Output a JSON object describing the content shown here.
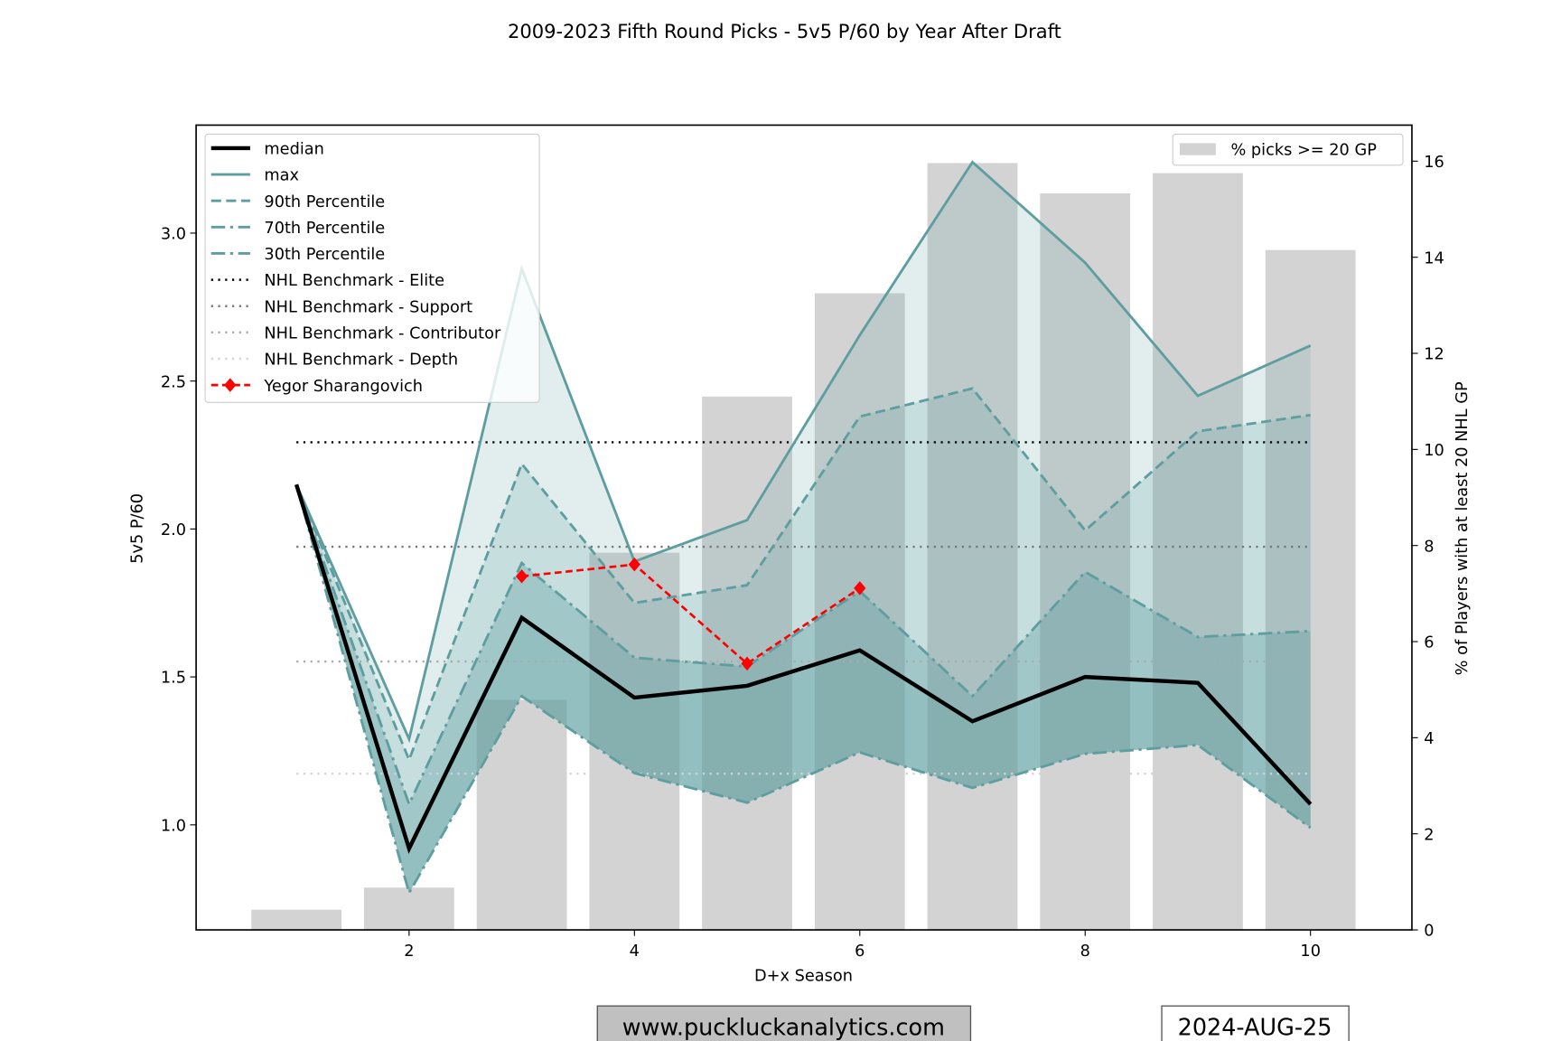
{
  "chart_data": {
    "type": "line",
    "title": "2009-2023 Fifth Round Picks - 5v5 P/60 by Year After Draft",
    "xlabel": "D+x Season",
    "ylabel": "5v5 P/60",
    "y2label": "% of Players with at least 20 NHL GP",
    "xlim": [
      0.11,
      10.9
    ],
    "ylim": [
      0.645,
      3.365
    ],
    "y2lim": [
      0,
      16.75
    ],
    "xticks": [
      2,
      4,
      6,
      8,
      10
    ],
    "yticks": [
      "1.0",
      "1.5",
      "2.0",
      "2.5",
      "3.0"
    ],
    "y2ticks": [
      0,
      2,
      4,
      6,
      8,
      10,
      12,
      14,
      16
    ],
    "x": [
      1,
      2,
      3,
      4,
      5,
      6,
      7,
      8,
      9,
      10
    ],
    "series": [
      {
        "name": "median",
        "values": [
          2.15,
          0.92,
          1.7,
          1.43,
          1.47,
          1.59,
          1.35,
          1.5,
          1.48,
          1.07
        ]
      },
      {
        "name": "max",
        "values": [
          2.15,
          1.29,
          2.88,
          1.89,
          2.03,
          2.655,
          3.24,
          2.9,
          2.45,
          2.62
        ]
      },
      {
        "name": "90th Percentile",
        "values": [
          2.15,
          1.22,
          2.22,
          1.75,
          1.81,
          2.38,
          2.475,
          1.995,
          2.33,
          2.385
        ]
      },
      {
        "name": "70th Percentile",
        "values": [
          2.15,
          1.07,
          1.885,
          1.565,
          1.535,
          1.79,
          1.435,
          1.855,
          1.635,
          1.655
        ]
      },
      {
        "name": "30th Percentile",
        "values": [
          2.15,
          0.77,
          1.435,
          1.175,
          1.075,
          1.245,
          1.125,
          1.24,
          1.27,
          0.99
        ]
      }
    ],
    "benchmarks": [
      {
        "name": "NHL Benchmark - Elite",
        "value": 2.293,
        "color": "#000000"
      },
      {
        "name": "NHL Benchmark - Support",
        "value": 1.94,
        "color": "#777777"
      },
      {
        "name": "NHL Benchmark - Contributor",
        "value": 1.552,
        "color": "#aaaaaa"
      },
      {
        "name": "NHL Benchmark - Depth",
        "value": 1.173,
        "color": "#d3d3d3"
      }
    ],
    "player": {
      "name": "Yegor Sharangovich",
      "x": [
        3,
        4,
        5,
        6
      ],
      "values": [
        1.84,
        1.88,
        1.545,
        1.8
      ],
      "color": "#ff0000"
    },
    "bars": {
      "name": "% picks >= 20 GP",
      "values": [
        0.42,
        0.88,
        4.79,
        7.85,
        11.1,
        13.25,
        15.96,
        15.33,
        15.75,
        14.15
      ],
      "color": "#d3d3d3"
    },
    "colors": {
      "teal": "#5f9ea0",
      "median": "#000000"
    },
    "legend_placement": "upper-left",
    "bar_legend_placement": "upper-right"
  },
  "footer": {
    "website": "www.puckluckanalytics.com",
    "date": "2024-AUG-25"
  }
}
